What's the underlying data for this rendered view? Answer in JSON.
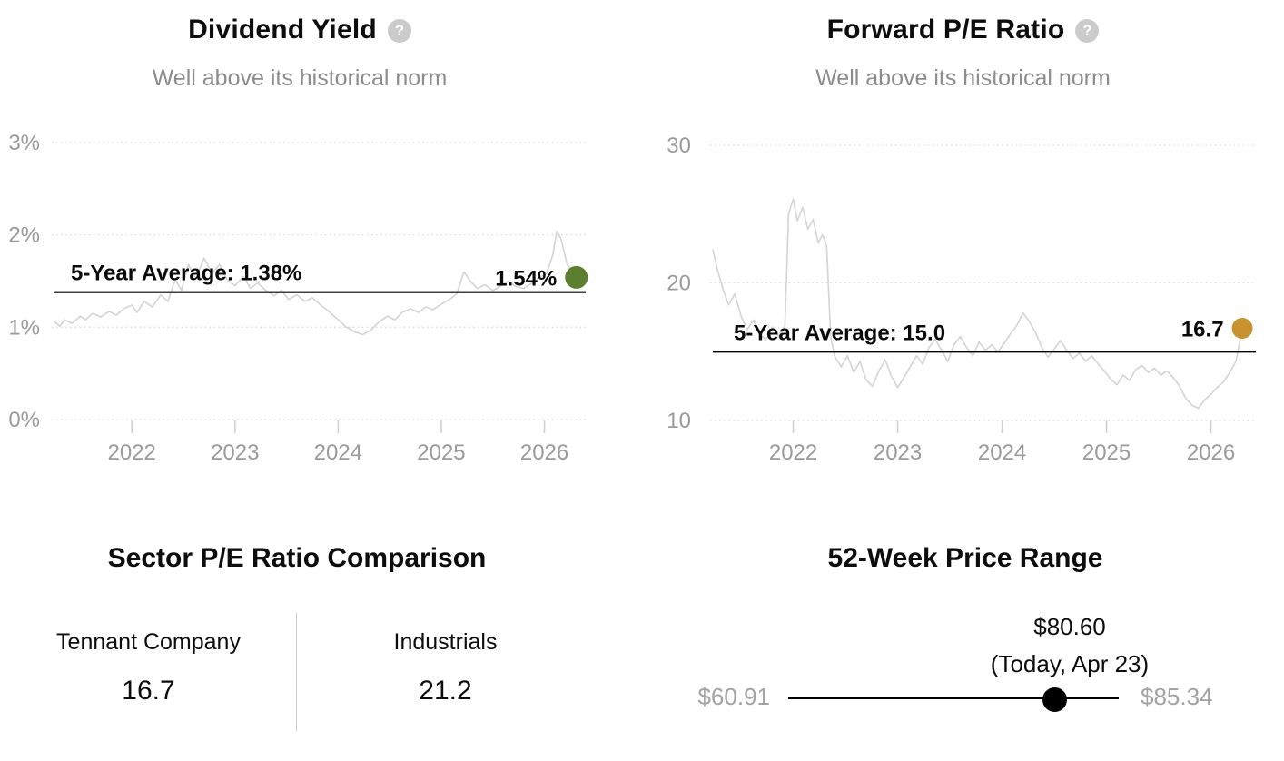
{
  "icons": {
    "help_glyph": "?"
  },
  "dividend_yield": {
    "title": "Dividend Yield",
    "subtitle": "Well above its historical norm"
  },
  "forward_pe": {
    "title": "Forward P/E Ratio",
    "subtitle": "Well above its historical norm"
  },
  "sector_comparison": {
    "title": "Sector P/E Ratio Comparison",
    "company": {
      "label": "Tennant Company",
      "value": "16.7"
    },
    "sector": {
      "label": "Industrials",
      "value": "21.2"
    }
  },
  "price_range": {
    "title": "52-Week Price Range",
    "low_label": "$60.91",
    "high_label": "$85.34",
    "current_label": "$80.60",
    "current_note": "(Today, Apr 23)",
    "low_value": 60.91,
    "high_value": 85.34,
    "current_value": 80.6
  },
  "chart_data": [
    {
      "type": "line",
      "title": "Dividend Yield",
      "subtitle": "Well above its historical norm",
      "unit": "%",
      "grid": "horizontal-dotted",
      "legend_position": "none",
      "yticks": [
        {
          "value": 3,
          "label": "3%"
        },
        {
          "value": 2,
          "label": "2%"
        },
        {
          "value": 1,
          "label": "1%"
        },
        {
          "value": 0,
          "label": "0%"
        }
      ],
      "xticks": [
        {
          "value": 2022,
          "label": "2022"
        },
        {
          "value": 2023,
          "label": "2023"
        },
        {
          "value": 2024,
          "label": "2024"
        },
        {
          "value": 2025,
          "label": "2025"
        },
        {
          "value": 2026,
          "label": "2026"
        }
      ],
      "xlim": [
        2021.25,
        2026.4
      ],
      "ylim": [
        0,
        3.1
      ],
      "average": 1.38,
      "average_label": "5-Year Average: 1.38%",
      "current": 1.54,
      "current_label": "1.54%",
      "current_color": "#5b7f2e",
      "line_color": "#d6d6d6",
      "series": [
        [
          2021.25,
          1.06
        ],
        [
          2021.3,
          1.01
        ],
        [
          2021.35,
          1.08
        ],
        [
          2021.42,
          1.04
        ],
        [
          2021.5,
          1.12
        ],
        [
          2021.55,
          1.08
        ],
        [
          2021.62,
          1.15
        ],
        [
          2021.7,
          1.11
        ],
        [
          2021.78,
          1.17
        ],
        [
          2021.85,
          1.13
        ],
        [
          2021.92,
          1.2
        ],
        [
          2022.0,
          1.24
        ],
        [
          2022.05,
          1.16
        ],
        [
          2022.12,
          1.28
        ],
        [
          2022.2,
          1.22
        ],
        [
          2022.28,
          1.35
        ],
        [
          2022.35,
          1.28
        ],
        [
          2022.42,
          1.52
        ],
        [
          2022.48,
          1.4
        ],
        [
          2022.55,
          1.68
        ],
        [
          2022.62,
          1.52
        ],
        [
          2022.7,
          1.75
        ],
        [
          2022.78,
          1.58
        ],
        [
          2022.85,
          1.68
        ],
        [
          2022.92,
          1.52
        ],
        [
          2023.0,
          1.45
        ],
        [
          2023.08,
          1.55
        ],
        [
          2023.15,
          1.42
        ],
        [
          2023.22,
          1.48
        ],
        [
          2023.3,
          1.4
        ],
        [
          2023.38,
          1.34
        ],
        [
          2023.45,
          1.4
        ],
        [
          2023.52,
          1.3
        ],
        [
          2023.6,
          1.35
        ],
        [
          2023.68,
          1.28
        ],
        [
          2023.75,
          1.32
        ],
        [
          2023.82,
          1.25
        ],
        [
          2023.9,
          1.18
        ],
        [
          2024.0,
          1.08
        ],
        [
          2024.08,
          1.0
        ],
        [
          2024.16,
          0.95
        ],
        [
          2024.24,
          0.92
        ],
        [
          2024.32,
          0.97
        ],
        [
          2024.4,
          1.06
        ],
        [
          2024.48,
          1.12
        ],
        [
          2024.55,
          1.08
        ],
        [
          2024.62,
          1.16
        ],
        [
          2024.7,
          1.2
        ],
        [
          2024.78,
          1.16
        ],
        [
          2024.85,
          1.22
        ],
        [
          2024.92,
          1.19
        ],
        [
          2025.0,
          1.25
        ],
        [
          2025.08,
          1.3
        ],
        [
          2025.15,
          1.36
        ],
        [
          2025.22,
          1.6
        ],
        [
          2025.28,
          1.5
        ],
        [
          2025.35,
          1.42
        ],
        [
          2025.42,
          1.46
        ],
        [
          2025.5,
          1.4
        ],
        [
          2025.58,
          1.45
        ],
        [
          2025.65,
          1.5
        ],
        [
          2025.72,
          1.44
        ],
        [
          2025.8,
          1.42
        ],
        [
          2025.88,
          1.48
        ],
        [
          2025.95,
          1.54
        ],
        [
          2026.02,
          1.58
        ],
        [
          2026.08,
          1.78
        ],
        [
          2026.12,
          2.04
        ],
        [
          2026.16,
          1.96
        ],
        [
          2026.22,
          1.68
        ],
        [
          2026.31,
          1.54
        ]
      ]
    },
    {
      "type": "line",
      "title": "Forward P/E Ratio",
      "subtitle": "Well above its historical norm",
      "unit": "x",
      "grid": "horizontal-dotted",
      "legend_position": "none",
      "yticks": [
        {
          "value": 30,
          "label": "30"
        },
        {
          "value": 20,
          "label": "20"
        },
        {
          "value": 10,
          "label": "10"
        }
      ],
      "xticks": [
        {
          "value": 2022,
          "label": "2022"
        },
        {
          "value": 2023,
          "label": "2023"
        },
        {
          "value": 2024,
          "label": "2024"
        },
        {
          "value": 2025,
          "label": "2025"
        },
        {
          "value": 2026,
          "label": "2026"
        }
      ],
      "xlim": [
        2021.23,
        2026.43
      ],
      "ylim": [
        10,
        31
      ],
      "average": 15.0,
      "average_label": "5-Year Average: 15.0",
      "current": 16.7,
      "current_label": "16.7",
      "current_color": "#c8922f",
      "line_color": "#d6d6d6",
      "series": [
        [
          2021.23,
          22.4
        ],
        [
          2021.28,
          20.8
        ],
        [
          2021.33,
          19.5
        ],
        [
          2021.38,
          18.4
        ],
        [
          2021.44,
          19.2
        ],
        [
          2021.5,
          17.6
        ],
        [
          2021.56,
          16.6
        ],
        [
          2021.62,
          17.3
        ],
        [
          2021.68,
          16.2
        ],
        [
          2021.74,
          15.9
        ],
        [
          2021.8,
          16.8
        ],
        [
          2021.86,
          16.1
        ],
        [
          2021.92,
          16.9
        ],
        [
          2021.955,
          25.0
        ],
        [
          2022.0,
          26.1
        ],
        [
          2022.04,
          24.5
        ],
        [
          2022.09,
          25.5
        ],
        [
          2022.14,
          23.9
        ],
        [
          2022.19,
          24.6
        ],
        [
          2022.24,
          22.9
        ],
        [
          2022.28,
          23.5
        ],
        [
          2022.32,
          22.7
        ],
        [
          2022.36,
          16.0
        ],
        [
          2022.4,
          14.6
        ],
        [
          2022.46,
          13.9
        ],
        [
          2022.52,
          14.7
        ],
        [
          2022.58,
          13.5
        ],
        [
          2022.64,
          14.3
        ],
        [
          2022.7,
          12.9
        ],
        [
          2022.76,
          12.5
        ],
        [
          2022.82,
          13.6
        ],
        [
          2022.88,
          14.4
        ],
        [
          2022.94,
          13.2
        ],
        [
          2023.0,
          12.4
        ],
        [
          2023.06,
          13.1
        ],
        [
          2023.12,
          13.9
        ],
        [
          2023.18,
          14.7
        ],
        [
          2023.24,
          14.1
        ],
        [
          2023.3,
          15.3
        ],
        [
          2023.36,
          15.9
        ],
        [
          2023.42,
          15.1
        ],
        [
          2023.48,
          14.3
        ],
        [
          2023.54,
          15.5
        ],
        [
          2023.6,
          16.1
        ],
        [
          2023.66,
          15.3
        ],
        [
          2023.72,
          14.7
        ],
        [
          2023.78,
          15.7
        ],
        [
          2023.84,
          15.1
        ],
        [
          2023.9,
          15.5
        ],
        [
          2023.96,
          15.0
        ],
        [
          2024.02,
          15.6
        ],
        [
          2024.08,
          16.3
        ],
        [
          2024.14,
          16.9
        ],
        [
          2024.2,
          17.8
        ],
        [
          2024.26,
          17.2
        ],
        [
          2024.32,
          16.4
        ],
        [
          2024.38,
          15.3
        ],
        [
          2024.44,
          14.6
        ],
        [
          2024.5,
          15.2
        ],
        [
          2024.56,
          15.8
        ],
        [
          2024.62,
          15.1
        ],
        [
          2024.68,
          14.5
        ],
        [
          2024.74,
          14.9
        ],
        [
          2024.8,
          14.3
        ],
        [
          2024.86,
          14.7
        ],
        [
          2024.92,
          14.1
        ],
        [
          2024.98,
          13.6
        ],
        [
          2025.04,
          13.0
        ],
        [
          2025.1,
          12.6
        ],
        [
          2025.16,
          13.3
        ],
        [
          2025.22,
          12.9
        ],
        [
          2025.28,
          13.7
        ],
        [
          2025.34,
          14.0
        ],
        [
          2025.4,
          13.5
        ],
        [
          2025.46,
          13.8
        ],
        [
          2025.52,
          13.3
        ],
        [
          2025.58,
          13.6
        ],
        [
          2025.64,
          13.1
        ],
        [
          2025.7,
          12.5
        ],
        [
          2025.76,
          11.6
        ],
        [
          2025.82,
          11.1
        ],
        [
          2025.88,
          10.9
        ],
        [
          2025.94,
          11.5
        ],
        [
          2026.0,
          11.9
        ],
        [
          2026.06,
          12.4
        ],
        [
          2026.12,
          12.8
        ],
        [
          2026.18,
          13.5
        ],
        [
          2026.24,
          14.3
        ],
        [
          2026.3,
          16.7
        ]
      ]
    }
  ]
}
